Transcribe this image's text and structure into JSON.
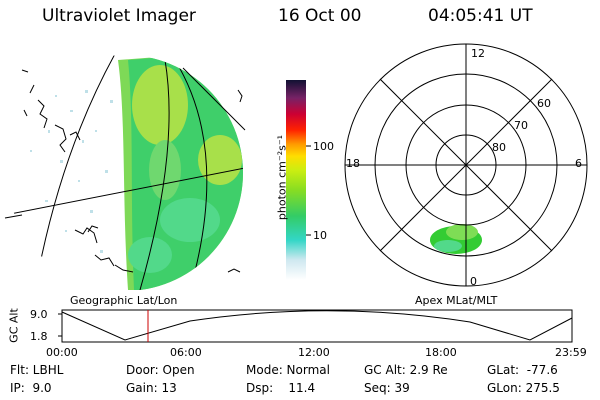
{
  "header": {
    "instrument": "Ultraviolet Imager",
    "date": "16 Oct 00",
    "time": "04:05:41 UT"
  },
  "colorbar": {
    "unit_label": "photon cm⁻²s⁻¹",
    "tick_100": "100",
    "tick_10": "10"
  },
  "polar_plot": {
    "mlt_top": "12",
    "mlt_left": "18",
    "mlt_right": "6",
    "mlt_bottom": "0",
    "lat_60": "60",
    "lat_70": "70",
    "lat_80": "80",
    "caption": "Apex MLat/MLT"
  },
  "geo_plot": {
    "caption": "Geographic Lat/Lon"
  },
  "alt_plot": {
    "axis_label": "GC Alt",
    "y_max": "9.0",
    "y_min": "1.8",
    "x_ticks": [
      "00:00",
      "06:00",
      "12:00",
      "18:00",
      "23:59"
    ]
  },
  "info": {
    "flt": "Flt: LBHL",
    "ip": "IP:  9.0",
    "door": "Door: Open",
    "gain": "Gain: 13",
    "mode": "Mode: Normal",
    "dsp": "Dsp:    11.4",
    "gcalt": "GC Alt: 2.9 Re",
    "seq": "Seq: 39",
    "glat": "GLat:  -77.6",
    "glon": "GLon: 275.5"
  },
  "colors": {
    "aurora_green": "#33cc33",
    "marker_red": "#cc0000"
  }
}
